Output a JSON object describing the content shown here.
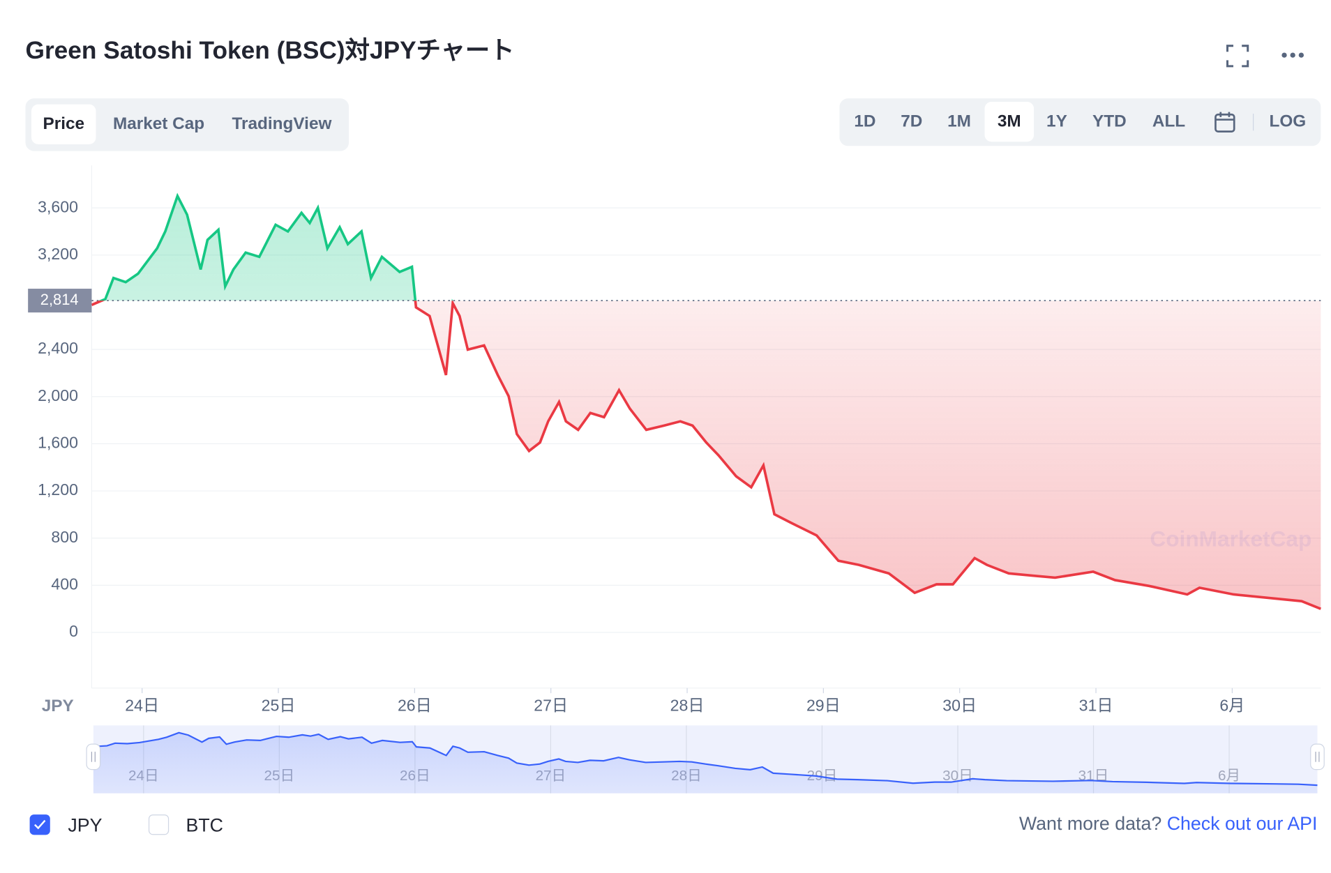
{
  "ui": {
    "title": "Green Satoshi Token (BSC)対JPYチャート",
    "tabs": [
      "Price",
      "Market Cap",
      "TradingView"
    ],
    "ranges": [
      "1D",
      "7D",
      "1M",
      "3M",
      "1Y",
      "YTD",
      "ALL"
    ],
    "log": "LOG",
    "currency_label": "JPY",
    "watermark": "CoinMarketCap",
    "checkboxes": [
      "JPY",
      "BTC"
    ],
    "footer_text": "Want more data?",
    "footer_link": "Check out our API"
  },
  "chart_data": {
    "type": "line",
    "x": [
      23.63,
      23.73,
      23.79,
      23.88,
      23.97,
      24.11,
      24.17,
      24.26,
      24.33,
      24.43,
      24.48,
      24.56,
      24.61,
      24.67,
      24.76,
      24.86,
      24.98,
      25.07,
      25.17,
      25.23,
      25.29,
      25.36,
      25.45,
      25.51,
      25.61,
      25.68,
      25.76,
      25.89,
      25.98,
      26.01,
      26.11,
      26.23,
      26.28,
      26.33,
      26.39,
      26.51,
      26.61,
      26.69,
      26.75,
      26.84,
      26.92,
      26.98,
      27.06,
      27.11,
      27.2,
      27.29,
      27.39,
      27.5,
      27.58,
      27.7,
      27.83,
      27.95,
      28.04,
      28.14,
      28.23,
      28.36,
      28.47,
      28.56,
      28.64,
      28.76,
      28.95,
      29.11,
      29.26,
      29.48,
      29.67,
      29.83,
      29.95,
      30.11,
      30.2,
      30.36,
      30.55,
      30.7,
      30.98,
      31.14,
      31.39,
      31.67,
      31.76,
      32.01,
      32.33,
      32.51,
      32.65
    ],
    "series": [
      {
        "name": "JPY",
        "values": [
          2777,
          2827,
          3006,
          2971,
          3042,
          3257,
          3400,
          3701,
          3543,
          3078,
          3329,
          3415,
          2935,
          3078,
          3221,
          3185,
          3457,
          3400,
          3558,
          3472,
          3600,
          3257,
          3436,
          3293,
          3400,
          3006,
          3185,
          3057,
          3100,
          2756,
          2684,
          2183,
          2792,
          2684,
          2398,
          2434,
          2183,
          2004,
          1682,
          1539,
          1611,
          1790,
          1954,
          1790,
          1718,
          1861,
          1825,
          2054,
          1897,
          1718,
          1754,
          1790,
          1754,
          1611,
          1503,
          1324,
          1231,
          1417,
          1002,
          931,
          823,
          608,
          573,
          501,
          336,
          408,
          408,
          630,
          573,
          501,
          480,
          465,
          515,
          444,
          394,
          322,
          379,
          322,
          286,
          265,
          200
        ]
      }
    ],
    "up_color": "#16c784",
    "down_color": "#ea3943",
    "navigator_color": "#3861fb",
    "reference_value": {
      "value": 2814,
      "label": "2,814"
    },
    "xlim": [
      23.63,
      32.65
    ],
    "xticks": [
      {
        "value": 24,
        "label": "24日"
      },
      {
        "value": 25,
        "label": "25日"
      },
      {
        "value": 26,
        "label": "26日"
      },
      {
        "value": 27,
        "label": "27日"
      },
      {
        "value": 28,
        "label": "28日"
      },
      {
        "value": 29,
        "label": "29日"
      },
      {
        "value": 30,
        "label": "30日"
      },
      {
        "value": 31,
        "label": "31日"
      },
      {
        "value": 32,
        "label": "6月"
      }
    ],
    "ylim": [
      -400,
      3960
    ],
    "yticks": [
      0,
      {
        "value": 400,
        "label": "400"
      },
      {
        "value": 800,
        "label": "800"
      },
      {
        "value": 1200,
        "label": "1,200"
      },
      {
        "value": 1600,
        "label": "1,600"
      },
      {
        "value": 2000,
        "label": "2,000"
      },
      {
        "value": 2400,
        "label": "2,400"
      },
      {
        "value": 3200,
        "label": "3,200"
      },
      {
        "value": 3600,
        "label": "3,600"
      }
    ],
    "grid": true
  }
}
